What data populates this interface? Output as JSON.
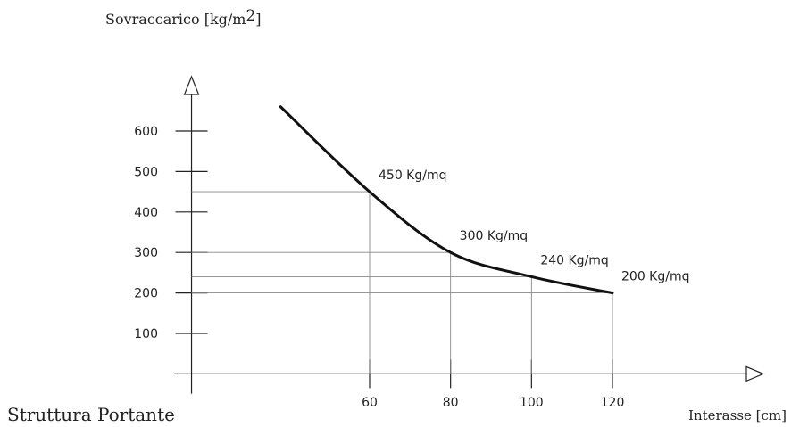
{
  "chart_data": {
    "type": "line",
    "ylabel": "Sovraccarico [kg/m",
    "ylabel_sup": "2",
    "ylabel_suffix": "]",
    "xlabel": "Interasse [cm]",
    "caption": "Struttura Portante",
    "x_ticks": [
      60,
      80,
      100,
      120
    ],
    "y_ticks": [
      100,
      200,
      300,
      400,
      500,
      600
    ],
    "xlim": [
      16,
      148
    ],
    "ylim": [
      -5,
      700
    ],
    "grid": false,
    "series": [
      {
        "points": [
          {
            "x": 38,
            "y": 660
          },
          {
            "x": 60,
            "y": 450
          },
          {
            "x": 80,
            "y": 300
          },
          {
            "x": 100,
            "y": 240
          },
          {
            "x": 120,
            "y": 200
          }
        ]
      }
    ],
    "annotations": [
      {
        "x": 60,
        "y": 450,
        "text": "450 Kg/mq"
      },
      {
        "x": 80,
        "y": 300,
        "text": "300 Kg/mq"
      },
      {
        "x": 100,
        "y": 240,
        "text": "240 Kg/mq"
      },
      {
        "x": 120,
        "y": 200,
        "text": "200 Kg/mq"
      }
    ]
  }
}
